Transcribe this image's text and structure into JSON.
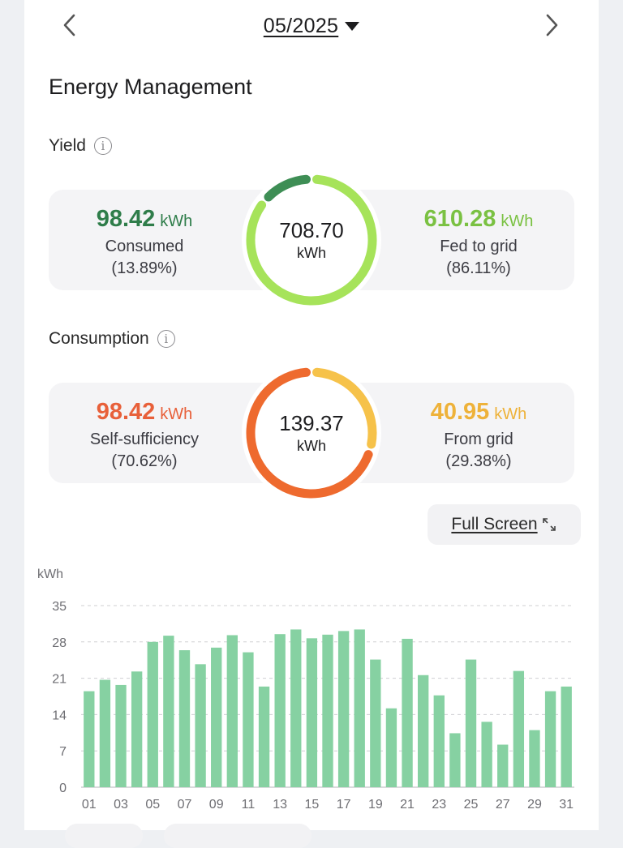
{
  "header": {
    "month": "05/2025"
  },
  "page": {
    "title": "Energy Management",
    "fullscreen_label": "Full Screen"
  },
  "yield": {
    "label": "Yield",
    "total": "708.70",
    "total_unit": "kWh",
    "left": {
      "value": "98.42",
      "unit": "kWh",
      "label": "Consumed",
      "pct": "(13.89%)",
      "fraction": 0.1389
    },
    "right": {
      "value": "610.28",
      "unit": "kWh",
      "label": "Fed to grid",
      "pct": "(86.11%)",
      "fraction": 0.8611
    },
    "colors": {
      "left": "#3e8e55",
      "right": "#a6e35a"
    }
  },
  "consumption": {
    "label": "Consumption",
    "total": "139.37",
    "total_unit": "kWh",
    "left": {
      "value": "98.42",
      "unit": "kWh",
      "label": "Self-sufficiency",
      "pct": "(70.62%)",
      "fraction": 0.7062
    },
    "right": {
      "value": "40.95",
      "unit": "kWh",
      "label": "From grid",
      "pct": "(29.38%)",
      "fraction": 0.2938
    },
    "colors": {
      "left": "#ee6a2e",
      "right": "#f6c24a"
    }
  },
  "chart_data": {
    "type": "bar",
    "ylabel": "kWh",
    "ylim": [
      0,
      35
    ],
    "yticks": [
      0,
      7,
      14,
      21,
      28,
      35
    ],
    "grid": true,
    "bar_color": "#86d1a2",
    "categories": [
      "01",
      "02",
      "03",
      "04",
      "05",
      "06",
      "07",
      "08",
      "09",
      "10",
      "11",
      "12",
      "13",
      "14",
      "15",
      "16",
      "17",
      "18",
      "19",
      "20",
      "21",
      "22",
      "23",
      "24",
      "25",
      "26",
      "27",
      "28",
      "29",
      "30",
      "31"
    ],
    "xtick_labels": [
      "01",
      "03",
      "05",
      "07",
      "09",
      "11",
      "13",
      "15",
      "17",
      "19",
      "21",
      "23",
      "25",
      "27",
      "29",
      "31"
    ],
    "values": [
      18.5,
      20.7,
      19.7,
      22.3,
      28.0,
      29.2,
      26.4,
      23.7,
      26.9,
      29.3,
      26.0,
      19.4,
      29.5,
      30.4,
      28.7,
      29.4,
      30.1,
      30.4,
      24.6,
      15.2,
      28.6,
      21.6,
      17.7,
      10.4,
      24.6,
      12.6,
      8.2,
      22.4,
      11.0,
      18.5,
      19.4
    ]
  }
}
